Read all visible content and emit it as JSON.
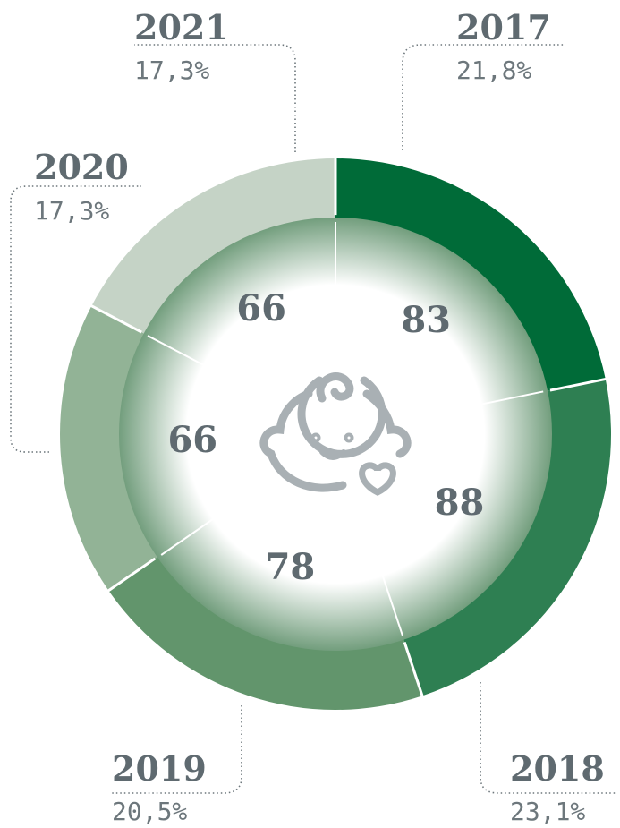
{
  "chart_data": {
    "type": "pie",
    "categories": [
      "2017",
      "2018",
      "2019",
      "2020",
      "2021"
    ],
    "values": [
      83,
      88,
      78,
      66,
      66
    ],
    "percentages": [
      21.8,
      23.1,
      20.5,
      17.3,
      17.3
    ],
    "percentage_labels": [
      "21,8%",
      "23,1%",
      "20,5%",
      "17,3%",
      "17,3%"
    ],
    "colors": [
      "#006b38",
      "#2e7f52",
      "#62956c",
      "#92b396",
      "#c5d3c6"
    ]
  }
}
